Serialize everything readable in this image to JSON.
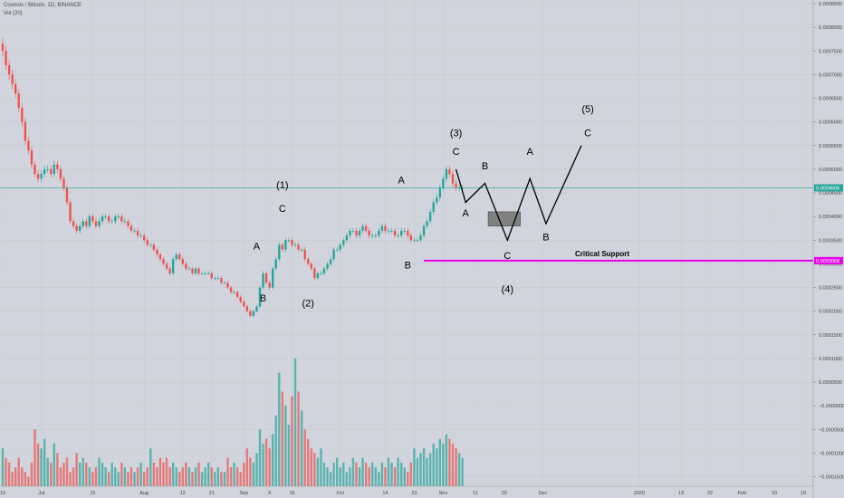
{
  "header": {
    "title": "Cosmos / Bitcoin, 1D, BINANCE",
    "volume": "Vol (20)"
  },
  "colors": {
    "bull": "#26a69a",
    "bear": "#ef5350",
    "annotation": "#000000",
    "support": "#e600e6",
    "price_line": "#26a69a",
    "box": "#808080"
  },
  "chart_data": {
    "type": "candlestick",
    "price_axis": {
      "ticks": [
        "0.0008500",
        "0.0008000",
        "0.0007500",
        "0.0007000",
        "0.0006500",
        "0.0006000",
        "0.0005500",
        "0.0005000",
        "0.0004500",
        "0.0004000",
        "0.0003500",
        "0.0003000",
        "0.0002500",
        "0.0002000",
        "0.0001500",
        "0.0001000",
        "0.0000500",
        "−0.0000000",
        "−0.0000500",
        "−0.0001000",
        "−0.0001500"
      ],
      "range": [
        -0.00017,
        0.00085
      ]
    },
    "time_axis": {
      "labels": [
        {
          "text": "19",
          "bar": 0
        },
        {
          "text": "Jul",
          "bar": 12
        },
        {
          "text": "15",
          "bar": 28
        },
        {
          "text": "Aug",
          "bar": 44
        },
        {
          "text": "12",
          "bar": 56
        },
        {
          "text": "21",
          "bar": 65
        },
        {
          "text": "Sep",
          "bar": 75
        },
        {
          "text": "9",
          "bar": 83
        },
        {
          "text": "16",
          "bar": 90
        },
        {
          "text": "Oct",
          "bar": 105
        },
        {
          "text": "14",
          "bar": 119
        },
        {
          "text": "23",
          "bar": 128
        },
        {
          "text": "Nov",
          "bar": 137
        },
        {
          "text": "11",
          "bar": 147
        },
        {
          "text": "20",
          "bar": 156
        },
        {
          "text": "Dec",
          "bar": 168
        },
        {
          "text": "2020",
          "bar": 198
        },
        {
          "text": "13",
          "bar": 211
        },
        {
          "text": "22",
          "bar": 220
        },
        {
          "text": "Feb",
          "bar": 230
        },
        {
          "text": "10",
          "bar": 240
        },
        {
          "text": "19",
          "bar": 249
        }
      ]
    },
    "closes": [
      0.00075,
      0.00072,
      0.0007,
      0.00068,
      0.00066,
      0.00063,
      0.0006,
      0.00056,
      0.00054,
      0.00051,
      0.00049,
      0.00048,
      0.00049,
      0.0005,
      0.0005,
      0.00049,
      0.00051,
      0.0005,
      0.00048,
      0.00046,
      0.00043,
      0.00039,
      0.00038,
      0.00037,
      0.00038,
      0.00039,
      0.00038,
      0.0004,
      0.00039,
      0.00038,
      0.00039,
      0.0004,
      0.0004,
      0.00039,
      0.00039,
      0.0004,
      0.0004,
      0.00039,
      0.00039,
      0.00038,
      0.00037,
      0.00037,
      0.00036,
      0.00036,
      0.00035,
      0.00034,
      0.00034,
      0.00033,
      0.00032,
      0.00031,
      0.0003,
      0.00029,
      0.00028,
      0.00031,
      0.00032,
      0.00031,
      0.0003,
      0.00029,
      0.00029,
      0.00028,
      0.00029,
      0.00028,
      0.00028,
      0.00028,
      0.00028,
      0.00027,
      0.00027,
      0.00027,
      0.00026,
      0.00026,
      0.00025,
      0.00024,
      0.00024,
      0.00023,
      0.00022,
      0.00021,
      0.0002,
      0.00019,
      0.0002,
      0.00021,
      0.00025,
      0.00028,
      0.00026,
      0.00025,
      0.00029,
      0.00031,
      0.00034,
      0.00033,
      0.00035,
      0.00035,
      0.00034,
      0.00034,
      0.00033,
      0.00033,
      0.00031,
      0.0003,
      0.00029,
      0.00027,
      0.00028,
      0.00028,
      0.00029,
      0.0003,
      0.00031,
      0.00033,
      0.00033,
      0.00034,
      0.00035,
      0.00036,
      0.00037,
      0.00037,
      0.00036,
      0.00037,
      0.00038,
      0.00037,
      0.00036,
      0.00036,
      0.00036,
      0.00037,
      0.00038,
      0.00037,
      0.00037,
      0.00037,
      0.00036,
      0.00036,
      0.00037,
      0.00037,
      0.00036,
      0.00035,
      0.00035,
      0.00035,
      0.00036,
      0.00038,
      0.00039,
      0.00041,
      0.00043,
      0.00044,
      0.00046,
      0.00048,
      0.0005,
      0.00049,
      0.00047,
      0.00046,
      0.00046,
      0.00046
    ],
    "current_price": {
      "label": "0.0004606",
      "value": 0.0004606
    },
    "support_level": {
      "label": "0.0003068",
      "value": 0.0003068,
      "text": "Critical Support",
      "from_bar": 131
    },
    "volumes": [
      8e-05,
      6e-05,
      5e-05,
      3e-05,
      4e-05,
      6e-05,
      4e-05,
      3e-05,
      2e-05,
      5e-05,
      0.00012,
      9e-05,
      8e-05,
      0.0001,
      6e-05,
      5e-05,
      9e-05,
      7e-05,
      4e-05,
      5e-05,
      6e-05,
      3e-05,
      4e-05,
      7e-05,
      5e-05,
      6e-05,
      5e-05,
      4e-05,
      3e-05,
      4e-05,
      6e-05,
      5e-05,
      4e-05,
      3e-05,
      5e-05,
      4e-05,
      3e-05,
      5e-05,
      4e-05,
      3e-05,
      4e-05,
      3e-05,
      4e-05,
      5e-05,
      3e-05,
      4e-05,
      8e-05,
      5e-05,
      4e-05,
      6e-05,
      5e-05,
      6e-05,
      4e-05,
      5e-05,
      4e-05,
      3e-05,
      4e-05,
      5e-05,
      4e-05,
      3e-05,
      4e-05,
      5e-05,
      3e-05,
      4e-05,
      5e-05,
      4e-05,
      3e-05,
      4e-05,
      3e-05,
      3e-05,
      6e-05,
      4e-05,
      5e-05,
      4e-05,
      3e-05,
      5e-05,
      8e-05,
      6e-05,
      5e-05,
      7e-05,
      0.00012,
      9e-05,
      0.0001,
      8e-05,
      0.00011,
      0.00015,
      0.00024,
      0.0002,
      0.00017,
      0.00013,
      0.00019,
      0.00027,
      0.0002,
      0.00016,
      0.00012,
      0.0001,
      8e-05,
      7e-05,
      6e-05,
      8e-05,
      5e-05,
      4e-05,
      3e-05,
      5e-05,
      6e-05,
      4e-05,
      5e-05,
      3e-05,
      4e-05,
      6e-05,
      5e-05,
      4e-05,
      6e-05,
      5e-05,
      4e-05,
      5e-05,
      4e-05,
      3e-05,
      5e-05,
      4e-05,
      6e-05,
      5e-05,
      4e-05,
      6e-05,
      5e-05,
      4e-05,
      3e-05,
      5e-05,
      8e-05,
      6e-05,
      7e-05,
      8e-05,
      6e-05,
      7e-05,
      9e-05,
      8e-05,
      0.0001,
      9e-05,
      0.00011,
      0.0001,
      9e-05,
      8e-05,
      7e-05,
      6e-05
    ],
    "wave_path": [
      [
        141,
        0.0005
      ],
      [
        144,
        0.00043
      ],
      [
        150,
        0.00047
      ],
      [
        157,
        0.00035
      ],
      [
        164,
        0.00048
      ],
      [
        169,
        0.000385
      ],
      [
        180,
        0.00055
      ]
    ],
    "target_box": {
      "from_bar": 151,
      "to_bar": 161,
      "top": 0.00041,
      "bottom": 0.00038
    },
    "labels": [
      {
        "text": "(1)",
        "bar": 87,
        "price": 0.00046
      },
      {
        "text": "C",
        "bar": 87,
        "price": 0.00041
      },
      {
        "text": "A",
        "bar": 79,
        "price": 0.00033
      },
      {
        "text": "B",
        "bar": 81,
        "price": 0.00022
      },
      {
        "text": "(2)",
        "bar": 95,
        "price": 0.00021
      },
      {
        "text": "A",
        "bar": 124,
        "price": 0.00047
      },
      {
        "text": "B",
        "bar": 126,
        "price": 0.00029
      },
      {
        "text": "(3)",
        "bar": 141,
        "price": 0.00057
      },
      {
        "text": "C",
        "bar": 141,
        "price": 0.00053
      },
      {
        "text": "A",
        "bar": 144,
        "price": 0.0004
      },
      {
        "text": "B",
        "bar": 150,
        "price": 0.0005
      },
      {
        "text": "C",
        "bar": 157,
        "price": 0.00031
      },
      {
        "text": "(4)",
        "bar": 157,
        "price": 0.00024
      },
      {
        "text": "A",
        "bar": 164,
        "price": 0.00053
      },
      {
        "text": "B",
        "bar": 169,
        "price": 0.00035
      },
      {
        "text": "(5)",
        "bar": 182,
        "price": 0.00062
      },
      {
        "text": "C",
        "bar": 182,
        "price": 0.00057
      }
    ]
  }
}
